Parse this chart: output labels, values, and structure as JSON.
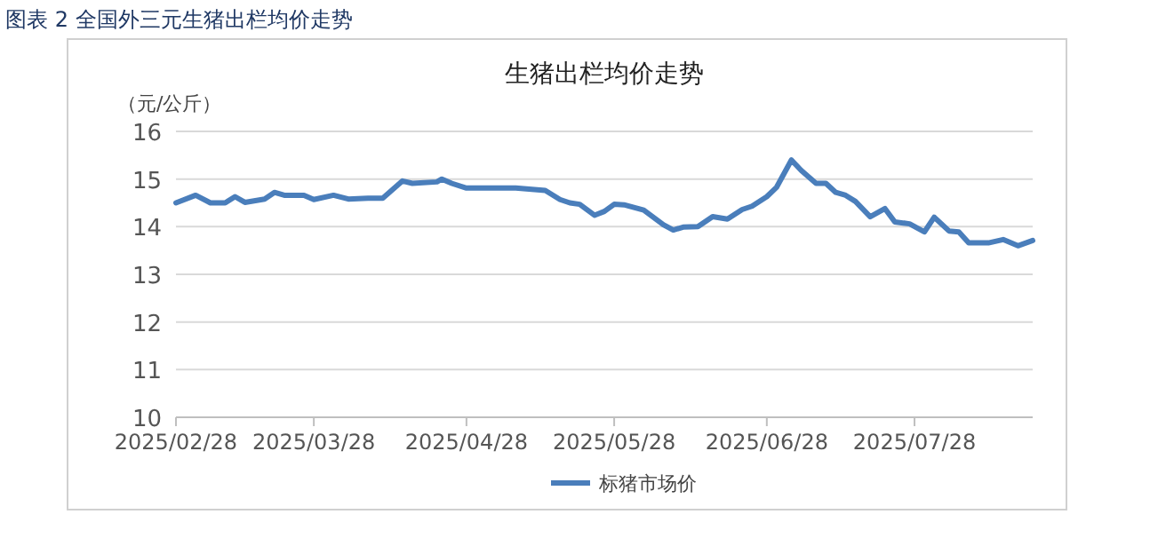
{
  "chart_data": {
    "type": "line",
    "title": "图表 2 全国外三元生猪出栏均价走势",
    "subtitle": "生猪出栏均价走势",
    "ylabel": "（元/公斤）",
    "x": [
      "2025-02-28",
      "2025-03-04",
      "2025-03-07",
      "2025-03-10",
      "2025-03-12",
      "2025-03-14",
      "2025-03-18",
      "2025-03-20",
      "2025-03-22",
      "2025-03-26",
      "2025-03-28",
      "2025-04-01",
      "2025-04-04",
      "2025-04-08",
      "2025-04-11",
      "2025-04-15",
      "2025-04-17",
      "2025-04-22",
      "2025-04-23",
      "2025-04-25",
      "2025-04-28",
      "2025-05-08",
      "2025-05-14",
      "2025-05-17",
      "2025-05-19",
      "2025-05-21",
      "2025-05-24",
      "2025-05-26",
      "2025-05-28",
      "2025-05-30",
      "2025-06-03",
      "2025-06-07",
      "2025-06-09",
      "2025-06-11",
      "2025-06-14",
      "2025-06-17",
      "2025-06-20",
      "2025-06-23",
      "2025-06-25",
      "2025-06-28",
      "2025-06-30",
      "2025-07-03",
      "2025-07-05",
      "2025-07-08",
      "2025-07-10",
      "2025-07-12",
      "2025-07-14",
      "2025-07-16",
      "2025-07-19",
      "2025-07-22",
      "2025-07-24",
      "2025-07-27",
      "2025-07-30",
      "2025-08-01",
      "2025-08-04",
      "2025-08-06",
      "2025-08-08",
      "2025-08-12",
      "2025-08-15",
      "2025-08-18",
      "2025-08-21"
    ],
    "series": [
      {
        "name": "标猪市场价",
        "color": "#4a7ebb",
        "values": [
          14.5,
          14.66,
          14.5,
          14.5,
          14.63,
          14.51,
          14.58,
          14.72,
          14.66,
          14.66,
          14.57,
          14.66,
          14.58,
          14.6,
          14.6,
          14.96,
          14.91,
          14.94,
          15.0,
          14.91,
          14.81,
          14.81,
          14.76,
          14.57,
          14.5,
          14.47,
          14.24,
          14.32,
          14.47,
          14.46,
          14.35,
          14.04,
          13.93,
          13.99,
          14.0,
          14.21,
          14.16,
          14.36,
          14.43,
          14.63,
          14.83,
          15.4,
          15.18,
          14.91,
          14.91,
          14.72,
          14.66,
          14.53,
          14.21,
          14.38,
          14.1,
          14.06,
          13.89,
          14.2,
          13.91,
          13.89,
          13.66,
          13.66,
          13.73,
          13.6,
          13.71
        ]
      }
    ],
    "xlim": [
      "2025-02-28",
      "2025-08-21"
    ],
    "xticks": [
      {
        "value": "2025-02-28",
        "label": "2025/02/28"
      },
      {
        "value": "2025-03-28",
        "label": "2025/03/28"
      },
      {
        "value": "2025-04-28",
        "label": "2025/04/28"
      },
      {
        "value": "2025-05-28",
        "label": "2025/05/28"
      },
      {
        "value": "2025-06-28",
        "label": "2025/06/28"
      },
      {
        "value": "2025-07-28",
        "label": "2025/07/28"
      }
    ],
    "ylim": [
      10,
      16
    ],
    "yticks": [
      10,
      11,
      12,
      13,
      14,
      15,
      16
    ],
    "grid": "y",
    "legend": "bottom",
    "marker": "none",
    "line_style": "solid"
  }
}
